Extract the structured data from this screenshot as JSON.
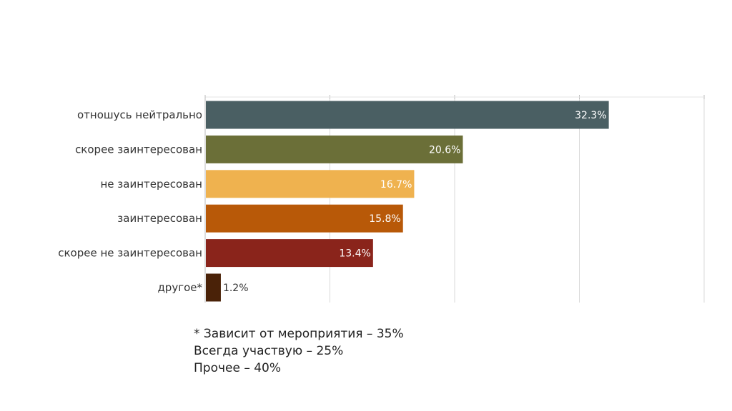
{
  "chart_data": {
    "type": "bar",
    "orientation": "horizontal",
    "categories": [
      "отношусь нейтрально",
      "скорее заинтересован",
      "не заинтересован",
      "заинтересован",
      "скорее не заинтересован",
      "другое*"
    ],
    "values": [
      32.3,
      20.6,
      16.7,
      15.8,
      13.4,
      1.2
    ],
    "data_labels": [
      "32.3%",
      "20.6%",
      "16.7%",
      "15.8%",
      "13.4%",
      "1.2%"
    ],
    "colors": [
      "#4a5f63",
      "#6b6f38",
      "#efb24f",
      "#b85908",
      "#8a241b",
      "#4a2208"
    ],
    "label_colors": [
      "#ffffff",
      "#ffffff",
      "#ffffff",
      "#ffffff",
      "#ffffff",
      "#333333"
    ],
    "xlim": [
      0,
      40
    ],
    "grid": true,
    "legend": "none",
    "title": "",
    "xlabel": "",
    "ylabel": ""
  },
  "footnote": {
    "lines": [
      "* Зависит от мероприятия – 35%",
      "Всегда участвую – 25%",
      "Прочее – 40%"
    ]
  }
}
